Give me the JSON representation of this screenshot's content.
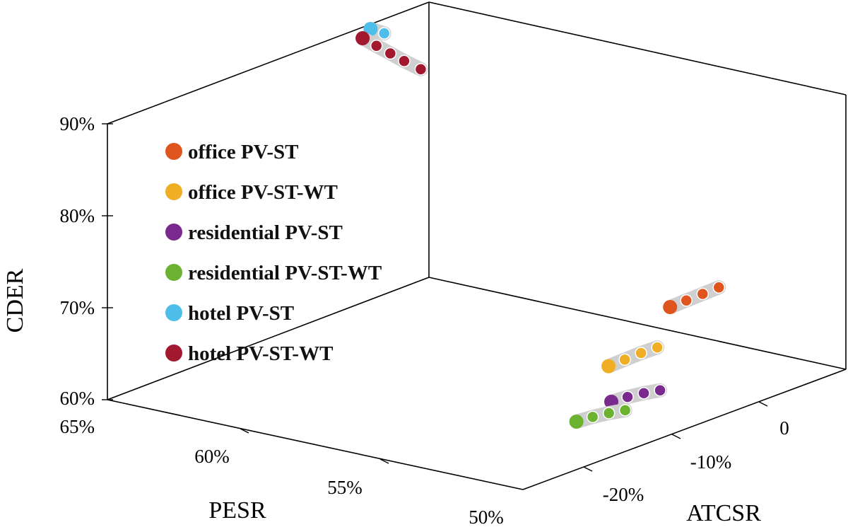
{
  "chart_data": {
    "type": "scatter",
    "projection": "3d",
    "title": "",
    "axes": {
      "x": {
        "label": "PESR",
        "ticks": [
          "65%",
          "60%",
          "55%",
          "50%"
        ],
        "range": [
          0.5,
          0.65
        ]
      },
      "y": {
        "label": "ATCSR",
        "ticks": [
          "-20%",
          "-10%",
          "0"
        ],
        "range": [
          -0.25,
          0.05
        ]
      },
      "z": {
        "label": "CDER",
        "ticks": [
          "60%",
          "70%",
          "80%",
          "90%"
        ],
        "range": [
          0.6,
          0.93
        ]
      }
    },
    "grid": false,
    "legend_position": "upper-left",
    "series": [
      {
        "name": "office PV-ST",
        "color": "#E0541D",
        "points": [
          [
            0.532,
            -0.03,
            0.68
          ],
          [
            0.53,
            -0.02,
            0.684
          ],
          [
            0.528,
            -0.01,
            0.688
          ],
          [
            0.526,
            0.0,
            0.692
          ]
        ]
      },
      {
        "name": "office PV-ST-WT",
        "color": "#F0AE25",
        "points": [
          [
            0.531,
            -0.09,
            0.643
          ],
          [
            0.529,
            -0.08,
            0.647
          ],
          [
            0.527,
            -0.07,
            0.651
          ],
          [
            0.525,
            -0.06,
            0.654
          ]
        ]
      },
      {
        "name": "residential PV-ST",
        "color": "#7A2A8C",
        "points": [
          [
            0.53,
            -0.09,
            0.605
          ],
          [
            0.528,
            -0.08,
            0.607
          ],
          [
            0.526,
            -0.07,
            0.608
          ],
          [
            0.524,
            -0.06,
            0.608
          ]
        ]
      },
      {
        "name": "residential PV-ST-WT",
        "color": "#6BB231",
        "points": [
          [
            0.531,
            -0.12,
            0.596
          ],
          [
            0.529,
            -0.11,
            0.598
          ],
          [
            0.527,
            -0.1,
            0.599
          ],
          [
            0.525,
            -0.09,
            0.599
          ]
        ]
      },
      {
        "name": "hotel PV-ST",
        "color": "#4DBEEA",
        "points": [
          [
            0.644,
            -0.02,
            0.905
          ],
          [
            0.641,
            -0.015,
            0.9
          ]
        ]
      },
      {
        "name": "hotel PV-ST-WT",
        "color": "#A2182E",
        "points": [
          [
            0.643,
            -0.03,
            0.9
          ],
          [
            0.638,
            -0.03,
            0.895
          ],
          [
            0.633,
            -0.03,
            0.89
          ],
          [
            0.628,
            -0.03,
            0.885
          ],
          [
            0.622,
            -0.03,
            0.88
          ]
        ]
      }
    ]
  }
}
